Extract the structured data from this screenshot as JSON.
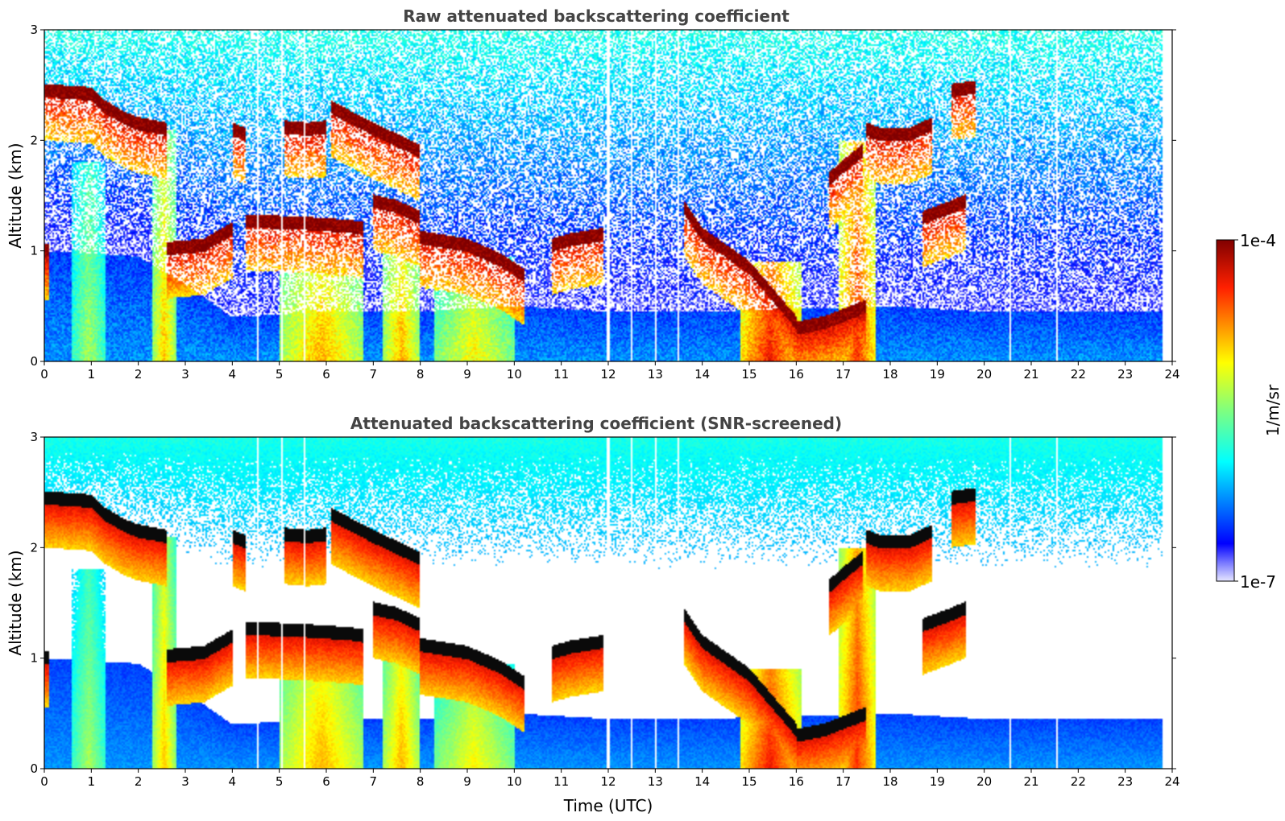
{
  "figure": {
    "colorbar": {
      "min_label": "1e-7",
      "max_label": "1e-4",
      "unit_label": "1/m/sr",
      "scale": "log",
      "min": 1e-07,
      "max": 0.0001
    }
  },
  "chart_data": [
    {
      "type": "heatmap",
      "title": "Raw attenuated backscattering coefficient",
      "xlabel": "",
      "ylabel": "Altitude (km)",
      "xlim": [
        0,
        24
      ],
      "ylim": [
        0,
        3
      ],
      "x_ticks": [
        "0",
        "1",
        "2",
        "3",
        "4",
        "5",
        "6",
        "7",
        "8",
        "9",
        "10",
        "11",
        "12",
        "13",
        "14",
        "15",
        "16",
        "17",
        "18",
        "19",
        "20",
        "21",
        "22",
        "23",
        "24"
      ],
      "y_ticks": [
        "0",
        "1",
        "2",
        "3"
      ],
      "screened": false,
      "data_end_time": 23.8,
      "gap_times": [
        4.55,
        5.05,
        5.55,
        12.0,
        12.5,
        13.0,
        13.5,
        20.55,
        21.55
      ],
      "boundary_layer_top": [
        [
          0,
          1.0
        ],
        [
          2,
          0.95
        ],
        [
          3,
          0.7
        ],
        [
          4,
          0.4
        ],
        [
          6,
          0.45
        ],
        [
          8,
          0.45
        ],
        [
          10,
          0.5
        ],
        [
          12,
          0.45
        ],
        [
          14,
          0.45
        ],
        [
          18,
          0.5
        ],
        [
          20,
          0.45
        ],
        [
          24,
          0.45
        ]
      ],
      "cloud_layers": [
        {
          "t": [
            0,
            1.0,
            1.3,
            1.7,
            2.0,
            2.6
          ],
          "alt": [
            2.45,
            2.42,
            2.3,
            2.2,
            2.15,
            2.1
          ]
        },
        {
          "t": [
            0,
            0.1
          ],
          "alt": [
            1.0,
            1.0
          ]
        },
        {
          "t": [
            2.6,
            3.4,
            4.0
          ],
          "alt": [
            1.02,
            1.05,
            1.2
          ]
        },
        {
          "t": [
            4.0,
            4.3
          ],
          "alt": [
            2.1,
            2.05
          ]
        },
        {
          "t": [
            4.3,
            5.5,
            6.5,
            6.8
          ],
          "alt": [
            1.27,
            1.25,
            1.22,
            1.2
          ]
        },
        {
          "t": [
            5.1,
            5.6,
            6.0
          ],
          "alt": [
            2.12,
            2.1,
            2.12
          ]
        },
        {
          "t": [
            6.1,
            7.0,
            7.5,
            8.0
          ],
          "alt": [
            2.3,
            2.1,
            2.0,
            1.9
          ]
        },
        {
          "t": [
            7.0,
            7.5,
            8.0
          ],
          "alt": [
            1.45,
            1.4,
            1.3
          ]
        },
        {
          "t": [
            8.0,
            9.0,
            9.7,
            10.2
          ],
          "alt": [
            1.12,
            1.05,
            0.92,
            0.78
          ]
        },
        {
          "t": [
            10.8,
            11.2,
            11.9
          ],
          "alt": [
            1.05,
            1.1,
            1.15
          ]
        },
        {
          "t": [
            13.6,
            14.0,
            14.5,
            15.0,
            15.5,
            16.0
          ],
          "alt": [
            1.4,
            1.15,
            1.0,
            0.85,
            0.6,
            0.35
          ]
        },
        {
          "t": [
            16.0,
            16.6,
            17.2,
            17.5
          ],
          "alt": [
            0.3,
            0.35,
            0.45,
            0.5
          ]
        },
        {
          "t": [
            16.7,
            17.1,
            17.4
          ],
          "alt": [
            1.65,
            1.8,
            1.9
          ]
        },
        {
          "t": [
            17.5,
            17.8,
            18.4,
            18.9
          ],
          "alt": [
            2.1,
            2.05,
            2.05,
            2.15
          ]
        },
        {
          "t": [
            18.7,
            19.2,
            19.6
          ],
          "alt": [
            1.3,
            1.38,
            1.45
          ]
        },
        {
          "t": [
            19.3,
            19.8
          ],
          "alt": [
            2.45,
            2.48
          ]
        }
      ],
      "precipitation_columns": [
        {
          "t0": 0.6,
          "t1": 1.3,
          "top": 1.8,
          "level": 0.55
        },
        {
          "t0": 2.3,
          "t1": 2.8,
          "top": 2.1,
          "level": 0.7
        },
        {
          "t0": 5.0,
          "t1": 6.8,
          "top": 1.2,
          "level": 0.72
        },
        {
          "t0": 7.2,
          "t1": 8.0,
          "top": 1.35,
          "level": 0.72
        },
        {
          "t0": 8.3,
          "t1": 10.0,
          "top": 0.95,
          "level": 0.65
        },
        {
          "t0": 14.8,
          "t1": 16.1,
          "top": 0.9,
          "level": 0.88
        },
        {
          "t0": 16.9,
          "t1": 17.7,
          "top": 2.0,
          "level": 0.85
        }
      ]
    },
    {
      "type": "heatmap",
      "title": "Attenuated backscattering coefficient (SNR-screened)",
      "xlabel": "Time (UTC)",
      "ylabel": "Altitude (km)",
      "xlim": [
        0,
        24
      ],
      "ylim": [
        0,
        3
      ],
      "x_ticks": [
        "0",
        "1",
        "2",
        "3",
        "4",
        "5",
        "6",
        "7",
        "8",
        "9",
        "10",
        "11",
        "12",
        "13",
        "14",
        "15",
        "16",
        "17",
        "18",
        "19",
        "20",
        "21",
        "22",
        "23",
        "24"
      ],
      "y_ticks": [
        "0",
        "1",
        "2",
        "3"
      ],
      "screened": true,
      "data_end_time": 23.8,
      "gap_times": [
        4.55,
        5.05,
        5.55,
        12.0,
        12.5,
        13.0,
        13.5,
        20.55,
        21.55
      ],
      "boundary_layer_top": [
        [
          0,
          1.0
        ],
        [
          2,
          0.95
        ],
        [
          3,
          0.7
        ],
        [
          4,
          0.4
        ],
        [
          6,
          0.45
        ],
        [
          8,
          0.45
        ],
        [
          10,
          0.5
        ],
        [
          12,
          0.45
        ],
        [
          14,
          0.45
        ],
        [
          18,
          0.5
        ],
        [
          20,
          0.45
        ],
        [
          24,
          0.45
        ]
      ],
      "cloud_layers": [
        {
          "t": [
            0,
            1.0,
            1.3,
            1.7,
            2.0,
            2.6
          ],
          "alt": [
            2.45,
            2.42,
            2.3,
            2.2,
            2.15,
            2.1
          ]
        },
        {
          "t": [
            0,
            0.1
          ],
          "alt": [
            1.0,
            1.0
          ]
        },
        {
          "t": [
            2.6,
            3.4,
            4.0
          ],
          "alt": [
            1.02,
            1.05,
            1.2
          ]
        },
        {
          "t": [
            4.0,
            4.3
          ],
          "alt": [
            2.1,
            2.05
          ]
        },
        {
          "t": [
            4.3,
            5.5,
            6.5,
            6.8
          ],
          "alt": [
            1.27,
            1.25,
            1.22,
            1.2
          ]
        },
        {
          "t": [
            5.1,
            5.6,
            6.0
          ],
          "alt": [
            2.12,
            2.1,
            2.12
          ]
        },
        {
          "t": [
            6.1,
            7.0,
            7.5,
            8.0
          ],
          "alt": [
            2.3,
            2.1,
            2.0,
            1.9
          ]
        },
        {
          "t": [
            7.0,
            7.5,
            8.0
          ],
          "alt": [
            1.45,
            1.4,
            1.3
          ]
        },
        {
          "t": [
            8.0,
            9.0,
            9.7,
            10.2
          ],
          "alt": [
            1.12,
            1.05,
            0.92,
            0.78
          ]
        },
        {
          "t": [
            10.8,
            11.2,
            11.9
          ],
          "alt": [
            1.05,
            1.1,
            1.15
          ]
        },
        {
          "t": [
            13.6,
            14.0,
            14.5,
            15.0,
            15.5,
            16.0
          ],
          "alt": [
            1.4,
            1.15,
            1.0,
            0.85,
            0.6,
            0.35
          ]
        },
        {
          "t": [
            16.0,
            16.6,
            17.2,
            17.5
          ],
          "alt": [
            0.3,
            0.35,
            0.45,
            0.5
          ]
        },
        {
          "t": [
            16.7,
            17.1,
            17.4
          ],
          "alt": [
            1.65,
            1.8,
            1.9
          ]
        },
        {
          "t": [
            17.5,
            17.8,
            18.4,
            18.9
          ],
          "alt": [
            2.1,
            2.05,
            2.05,
            2.15
          ]
        },
        {
          "t": [
            18.7,
            19.2,
            19.6
          ],
          "alt": [
            1.3,
            1.38,
            1.45
          ]
        },
        {
          "t": [
            19.3,
            19.8
          ],
          "alt": [
            2.45,
            2.48
          ]
        }
      ],
      "precipitation_columns": [
        {
          "t0": 0.6,
          "t1": 1.3,
          "top": 1.8,
          "level": 0.55
        },
        {
          "t0": 2.3,
          "t1": 2.8,
          "top": 2.1,
          "level": 0.7
        },
        {
          "t0": 5.0,
          "t1": 6.8,
          "top": 1.2,
          "level": 0.72
        },
        {
          "t0": 7.2,
          "t1": 8.0,
          "top": 1.35,
          "level": 0.72
        },
        {
          "t0": 8.3,
          "t1": 10.0,
          "top": 0.95,
          "level": 0.65
        },
        {
          "t0": 14.8,
          "t1": 16.1,
          "top": 0.9,
          "level": 0.88
        },
        {
          "t0": 16.9,
          "t1": 17.7,
          "top": 2.0,
          "level": 0.85
        }
      ]
    }
  ]
}
